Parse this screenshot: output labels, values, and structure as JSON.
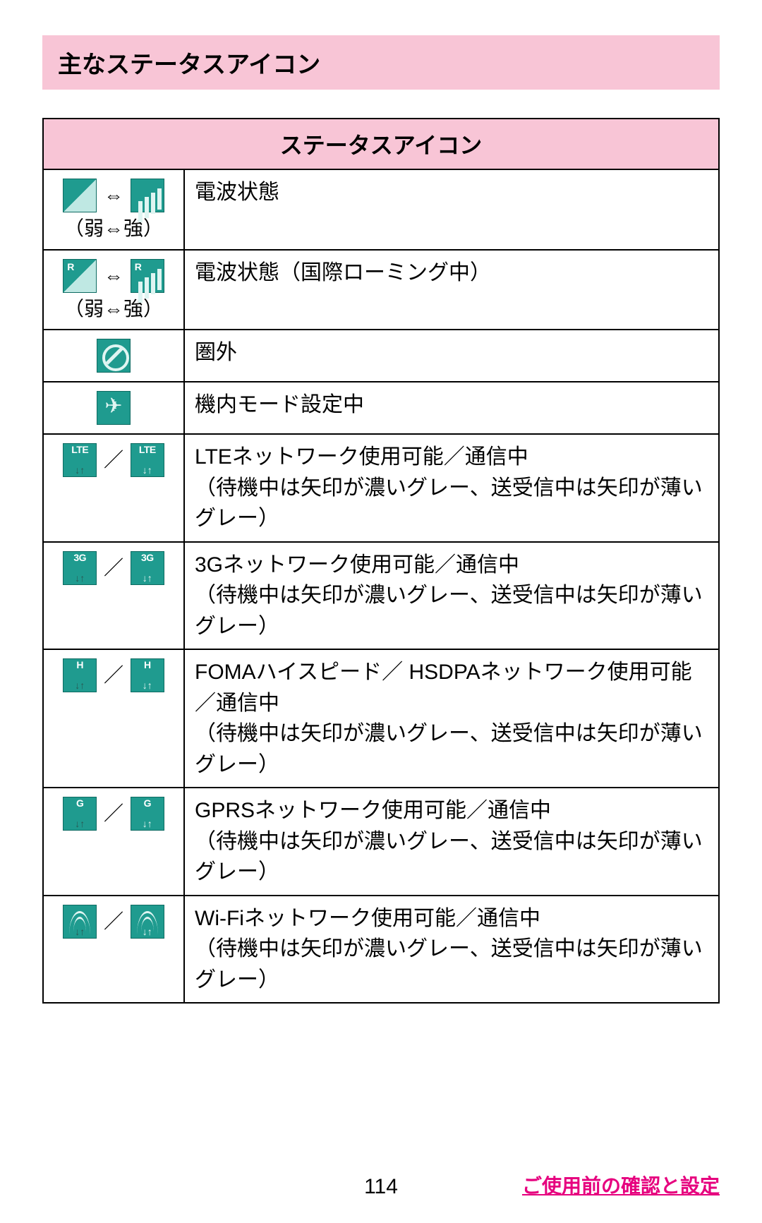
{
  "title": "主なステータスアイコン",
  "table_header": "ステータスアイコン",
  "colors": {
    "header_bg": "#f8c5d6",
    "icon_bg": "#1f9b8f",
    "icon_border": "#0e6b62",
    "icon_light": "#dff5f2",
    "footer_link": "#e6007e",
    "border": "#000000",
    "page_bg": "#ffffff"
  },
  "rows": [
    {
      "sub": "（弱⇔強）",
      "sep": "⇔",
      "desc": "電波状態"
    },
    {
      "sub": "（弱⇔強）",
      "sep": "⇔",
      "desc": "電波状態（国際ローミング中）"
    },
    {
      "desc": "圏外"
    },
    {
      "desc": "機内モード設定中"
    },
    {
      "tag": "LTE",
      "sep": "／",
      "desc": "LTEネットワーク使用可能／通信中\n（待機中は矢印が濃いグレー、送受信中は矢印が薄いグレー）"
    },
    {
      "tag": "3G",
      "sep": "／",
      "desc": "3Gネットワーク使用可能／通信中\n（待機中は矢印が濃いグレー、送受信中は矢印が薄いグレー）"
    },
    {
      "tag": "H",
      "sep": "／",
      "desc": "FOMAハイスピード／ HSDPAネットワーク使用可能／通信中\n（待機中は矢印が濃いグレー、送受信中は矢印が薄いグレー）"
    },
    {
      "tag": "G",
      "sep": "／",
      "desc": "GPRSネットワーク使用可能／通信中\n（待機中は矢印が濃いグレー、送受信中は矢印が薄いグレー）"
    },
    {
      "sep": "／",
      "desc": "Wi-Fiネットワーク使用可能／通信中\n（待機中は矢印が濃いグレー、送受信中は矢印が薄いグレー）"
    }
  ],
  "page_number": "114",
  "footer_link": "ご使用前の確認と設定",
  "arrow_glyph": "↓↑"
}
